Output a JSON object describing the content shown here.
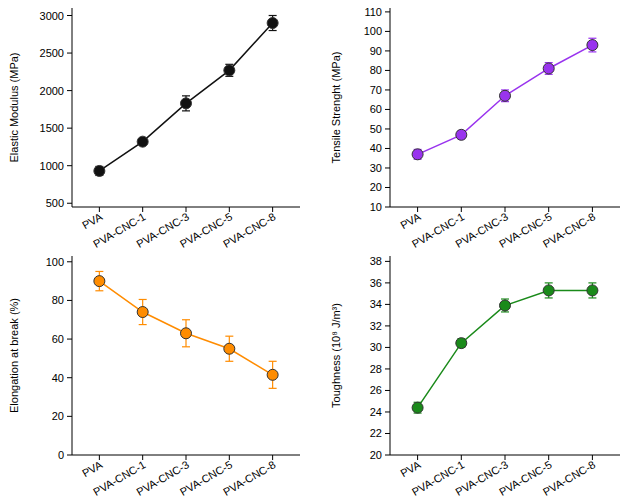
{
  "chart_data": [
    {
      "type": "line",
      "y_label": "Elastic Modulus (MPa)",
      "categories": [
        "PVA",
        "PVA-CNC-1",
        "PVA-CNC-3",
        "PVA-CNC-5",
        "PVA-CNC-8"
      ],
      "values": [
        930,
        1320,
        1830,
        2270,
        2900
      ],
      "errors": [
        60,
        40,
        100,
        80,
        100
      ],
      "color": "#111111",
      "marker": "circle",
      "ylim": [
        450,
        3100
      ],
      "yticks": [
        500,
        1000,
        1500,
        2000,
        2500,
        3000
      ]
    },
    {
      "type": "line",
      "y_label": "Tensile Strenght (MPa)",
      "categories": [
        "PVA",
        "PVA-CNC-1",
        "PVA-CNC-3",
        "PVA-CNC-5",
        "PVA-CNC-8"
      ],
      "values": [
        37,
        47,
        67,
        81,
        93
      ],
      "errors": [
        2.5,
        2,
        3,
        3,
        3.5
      ],
      "color": "#9933ee",
      "marker": "circle",
      "ylim": [
        10,
        112
      ],
      "yticks": [
        10,
        20,
        30,
        40,
        50,
        60,
        70,
        80,
        90,
        100,
        110
      ]
    },
    {
      "type": "line",
      "y_label": "Elongation at break (%)",
      "categories": [
        "PVA",
        "PVA-CNC-1",
        "PVA-CNC-3",
        "PVA-CNC-5",
        "PVA-CNC-8"
      ],
      "values": [
        90,
        74,
        63,
        55,
        41.5
      ],
      "errors": [
        5,
        6.5,
        7,
        6.5,
        7
      ],
      "color": "#ff8c00",
      "marker": "circle",
      "ylim": [
        0,
        103
      ],
      "yticks": [
        0,
        20,
        40,
        60,
        80,
        100
      ]
    },
    {
      "type": "line",
      "y_label": "Toughness (10⁸ J/m³)",
      "categories": [
        "PVA",
        "PVA-CNC-1",
        "PVA-CNC-3",
        "PVA-CNC-5",
        "PVA-CNC-8"
      ],
      "values": [
        24.4,
        30.4,
        33.9,
        35.3,
        35.3
      ],
      "errors": [
        0.5,
        0.4,
        0.6,
        0.7,
        0.7
      ],
      "color": "#1a8a1a",
      "marker": "circle",
      "ylim": [
        20,
        38.5
      ],
      "yticks": [
        20,
        22,
        24,
        26,
        28,
        30,
        32,
        34,
        36,
        38
      ]
    }
  ]
}
